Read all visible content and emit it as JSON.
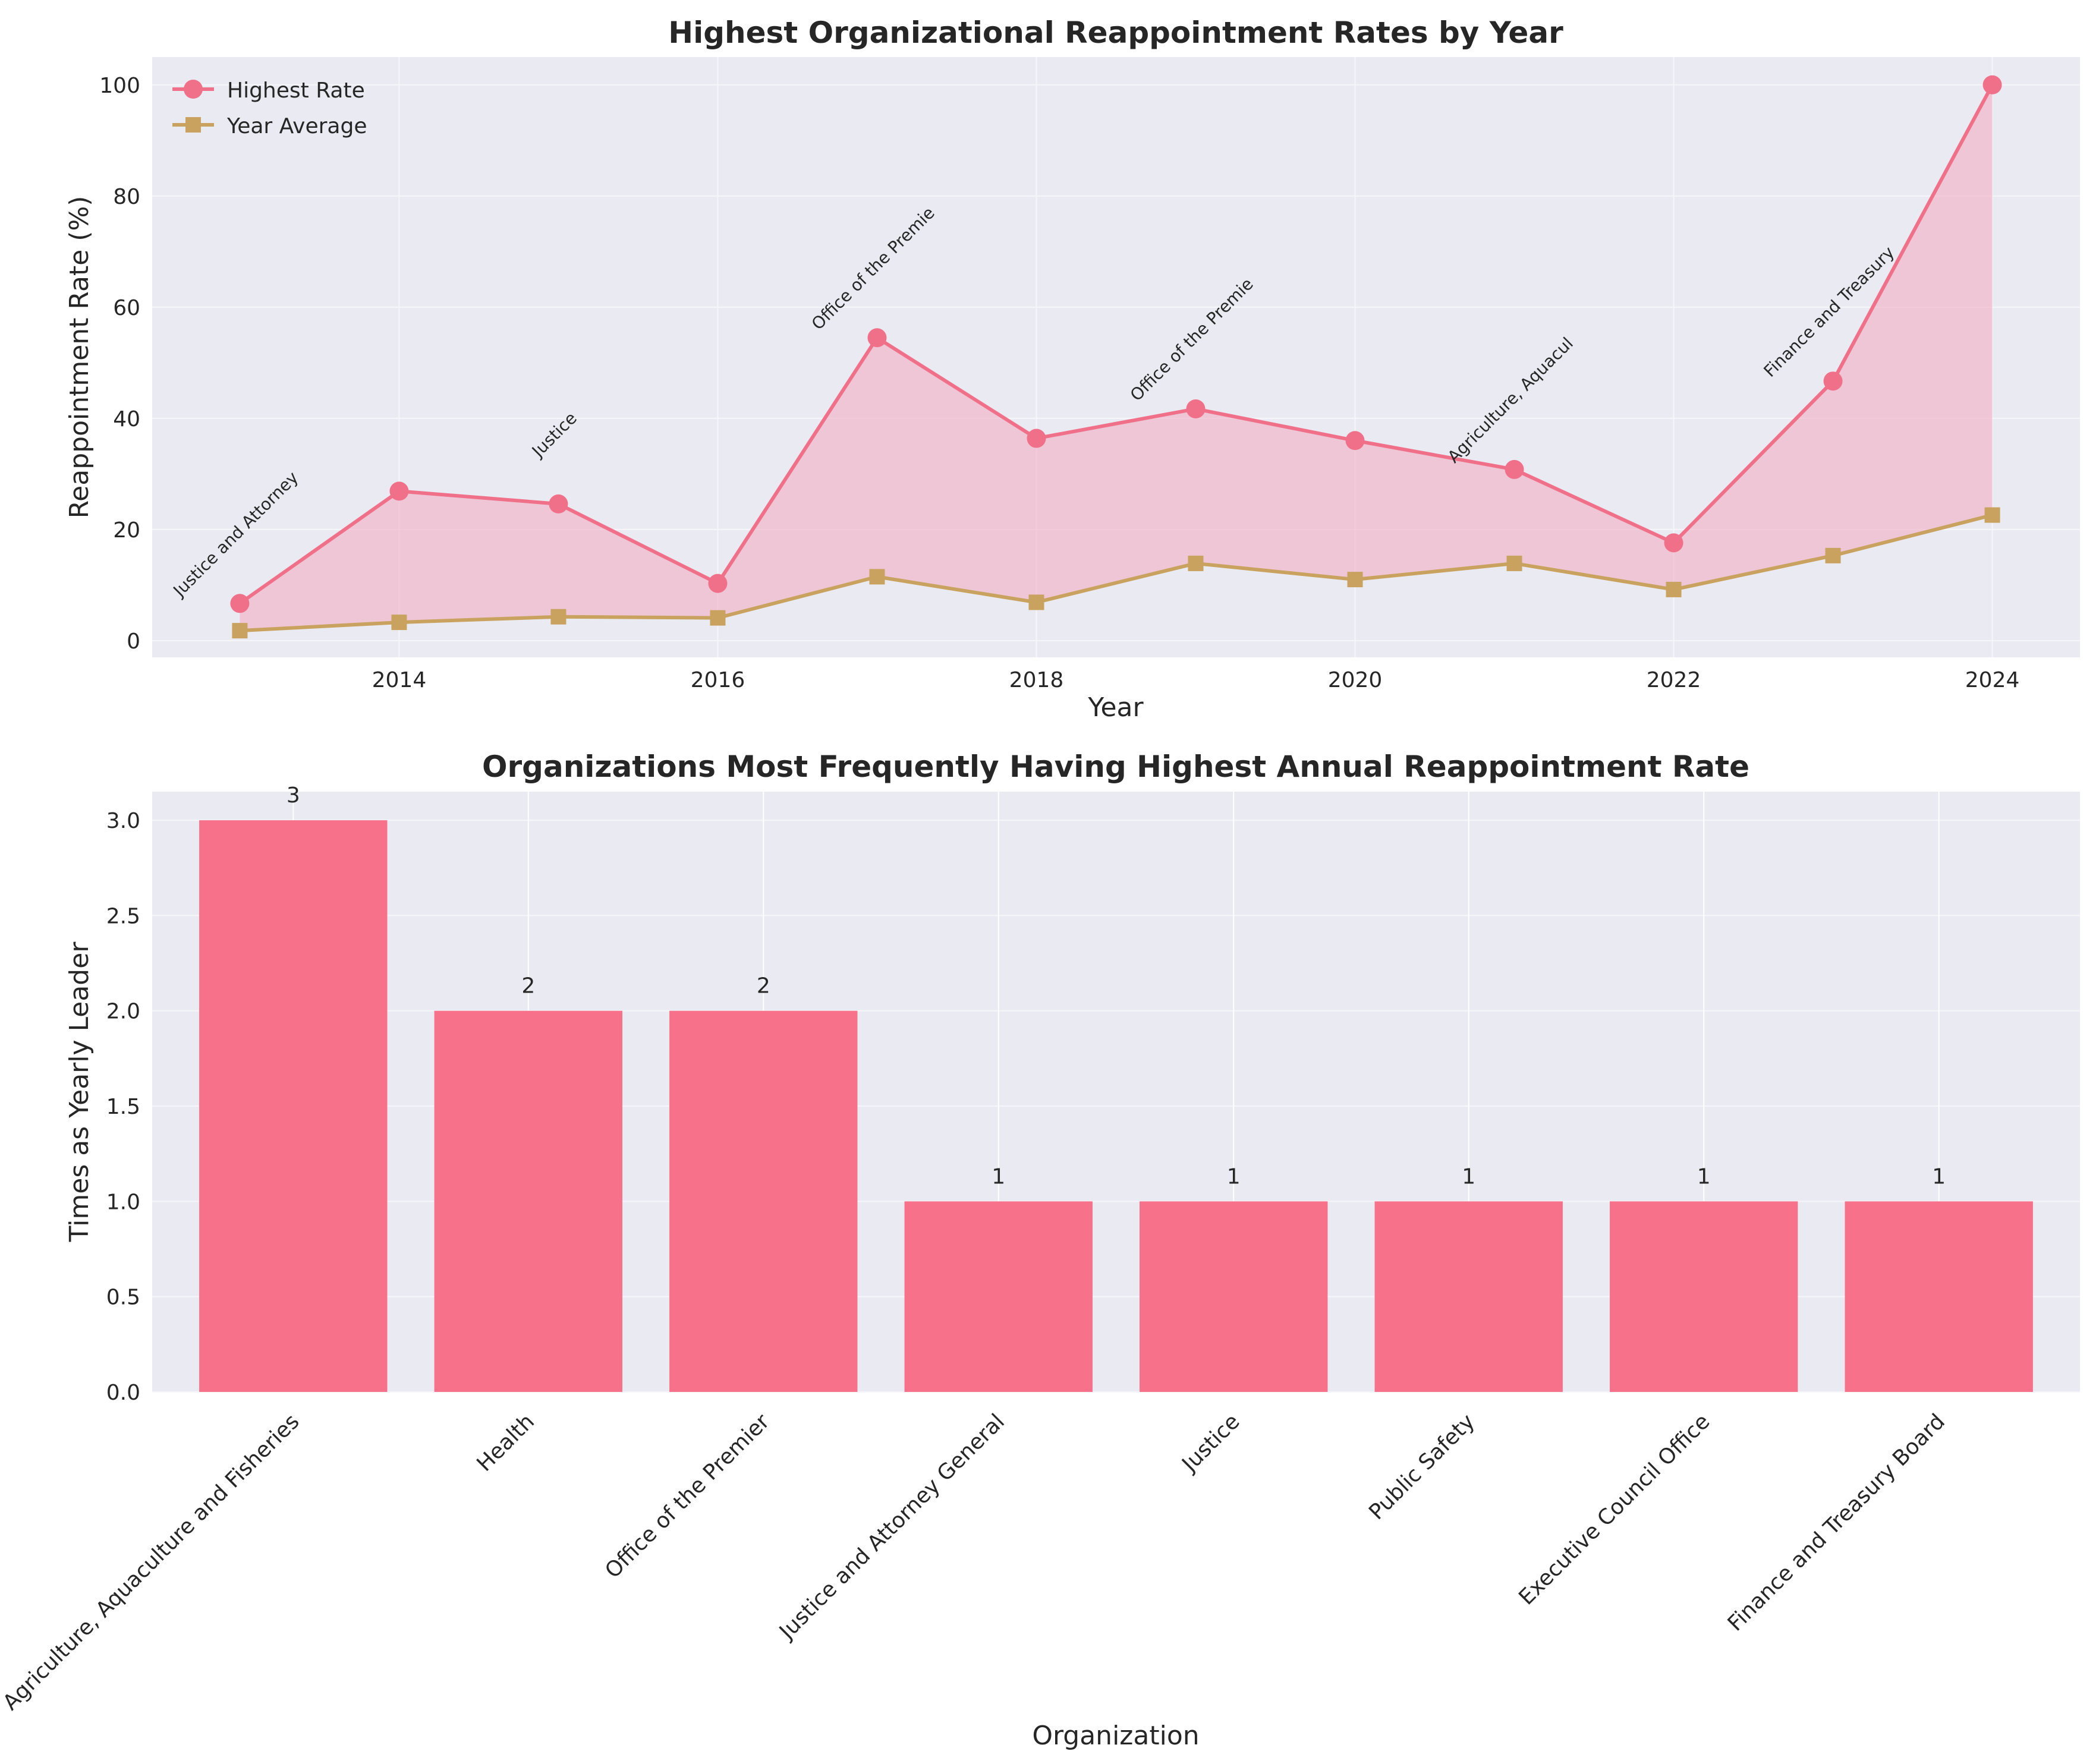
{
  "chart_data": [
    {
      "type": "line",
      "title": "Highest Organizational Reappointment Rates by Year",
      "xlabel": "Year",
      "ylabel": "Reappointment Rate (%)",
      "xlim": [
        2012.45,
        2024.55
      ],
      "ylim": [
        -3,
        105
      ],
      "xticks": [
        2014,
        2016,
        2018,
        2020,
        2022,
        2024
      ],
      "yticks": [
        0,
        20,
        40,
        60,
        80,
        100
      ],
      "grid": true,
      "legend": "top-left",
      "x": [
        2013,
        2014,
        2015,
        2016,
        2017,
        2018,
        2019,
        2020,
        2021,
        2022,
        2023,
        2024
      ],
      "series": [
        {
          "name": "Highest Rate",
          "color": "#f07089",
          "marker": "circle",
          "values": [
            6.7,
            26.9,
            24.6,
            10.3,
            54.5,
            36.4,
            41.7,
            36.0,
            30.8,
            17.6,
            46.7,
            100.0
          ]
        },
        {
          "name": "Year Average",
          "color": "#c9a25f",
          "marker": "square",
          "values": [
            1.8,
            3.3,
            4.3,
            4.1,
            11.5,
            6.9,
            13.9,
            11.0,
            13.9,
            9.2,
            15.3,
            22.6
          ]
        }
      ],
      "fill_between": {
        "color": "#f0a7bf"
      },
      "annotations": [
        {
          "x": 2013,
          "y": 6.7,
          "text": "Justice and Attorney"
        },
        {
          "x": 2015,
          "y": 24.6,
          "text": "Justice"
        },
        {
          "x": 2017,
          "y": 54.5,
          "text": "Office of the Premie"
        },
        {
          "x": 2019,
          "y": 41.7,
          "text": "Office of the Premie"
        },
        {
          "x": 2021,
          "y": 30.8,
          "text": "Agriculture, Aquacul"
        },
        {
          "x": 2023,
          "y": 46.7,
          "text": "Finance and Treasury"
        }
      ]
    },
    {
      "type": "bar",
      "title": "Organizations Most Frequently Having Highest Annual Reappointment Rate",
      "xlabel": "Organization",
      "ylabel": "Times as Yearly Leader",
      "ylim": [
        0,
        3.15
      ],
      "yticks": [
        0.0,
        0.5,
        1.0,
        1.5,
        2.0,
        2.5,
        3.0
      ],
      "grid": true,
      "color": "#f7718a",
      "categories": [
        "Agriculture, Aquaculture and Fisheries",
        "Health",
        "Office of the Premier",
        "Justice and Attorney General",
        "Justice",
        "Public Safety",
        "Executive Council Office",
        "Finance and Treasury Board"
      ],
      "values": [
        3,
        2,
        2,
        1,
        1,
        1,
        1,
        1
      ],
      "data_labels": [
        "3",
        "2",
        "2",
        "1",
        "1",
        "1",
        "1",
        "1"
      ]
    }
  ]
}
